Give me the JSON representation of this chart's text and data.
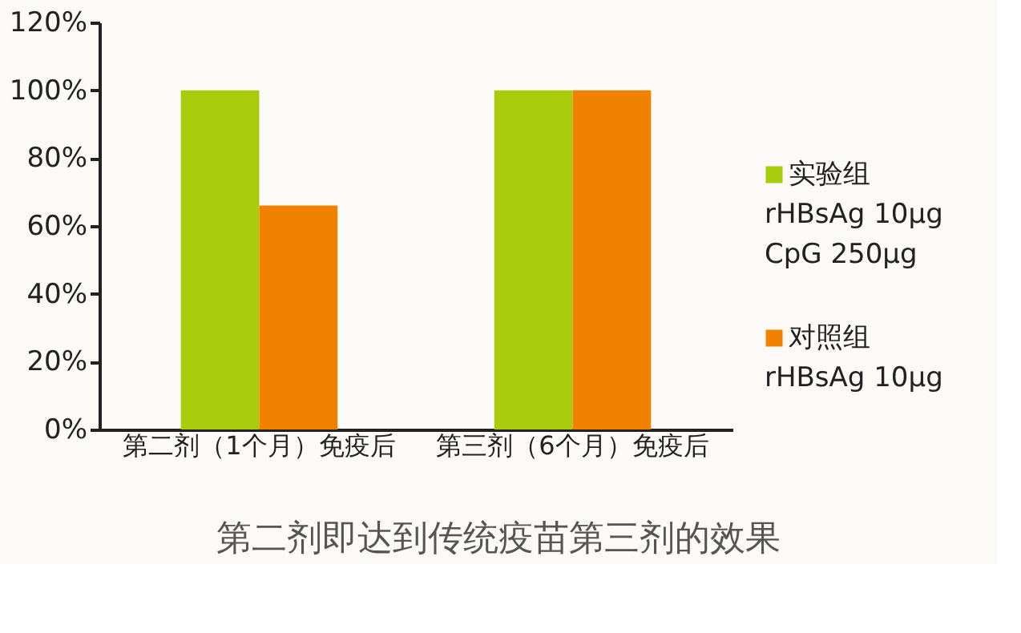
{
  "chart_data": {
    "type": "bar",
    "categories": [
      "第二剂（1个月）免疫后",
      "第三剂（6个月）免疫后"
    ],
    "series": [
      {
        "name": "实验组\nrHBsAg  10μg\n     CpG  250μg",
        "color": "#a8cc0c",
        "values": [
          100,
          100
        ]
      },
      {
        "name": "对照组\nrHBsAg  10μg",
        "color": "#f08200",
        "values": [
          66,
          100
        ]
      }
    ],
    "ylim": [
      0,
      120
    ],
    "yticks": [
      {
        "value": 0,
        "label": "0%"
      },
      {
        "value": 20,
        "label": "20%"
      },
      {
        "value": 40,
        "label": "40%"
      },
      {
        "value": 60,
        "label": "60%"
      },
      {
        "value": 80,
        "label": "80%"
      },
      {
        "value": 100,
        "label": "100%"
      },
      {
        "value": 120,
        "label": "120%"
      }
    ],
    "grid": false,
    "legend": "right",
    "annotations": [
      "第二剂即达到传统疫苗第三剂的效果"
    ]
  }
}
